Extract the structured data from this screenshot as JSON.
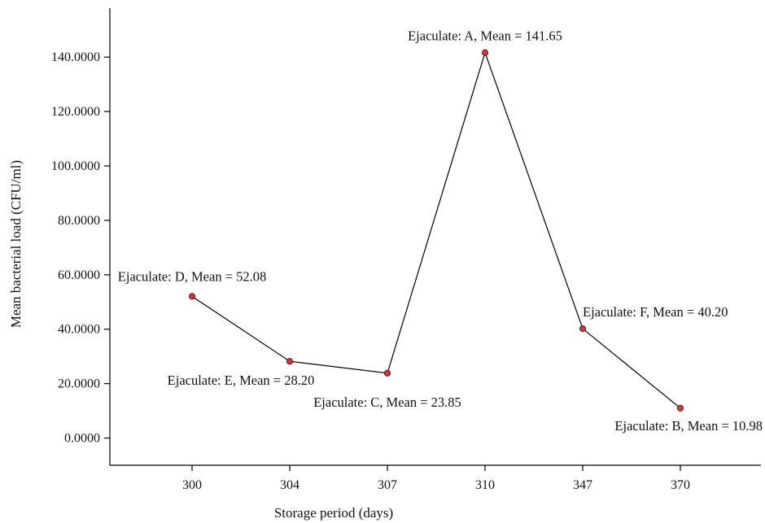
{
  "chart_data": {
    "type": "line",
    "categories": [
      "300",
      "304",
      "307",
      "310",
      "347",
      "370"
    ],
    "series": [
      {
        "values": [
          52.08,
          28.2,
          23.85,
          141.65,
          40.2,
          10.98
        ]
      }
    ],
    "annotations": [
      "Ejaculate: D, Mean = 52.08",
      "Ejaculate: E, Mean = 28.20",
      "Ejaculate: C, Mean = 23.85",
      "Ejaculate: A, Mean = 141.65",
      "Ejaculate: F, Mean = 40.20",
      "Ejaculate: B, Mean = 10.98"
    ],
    "y_ticks": [
      "0.0000",
      "20.0000",
      "40.0000",
      "60.0000",
      "80.0000",
      "100.0000",
      "120.0000",
      "140.0000"
    ],
    "y_tick_values": [
      0,
      20,
      40,
      60,
      80,
      100,
      120,
      140
    ],
    "xlabel": "Storage period (days)",
    "ylabel": "Mean bacterial load (CFU/ml)",
    "ylim": [
      -10,
      158
    ],
    "grid": false,
    "marker_color": "#e8302a",
    "line_color": "#000000"
  }
}
